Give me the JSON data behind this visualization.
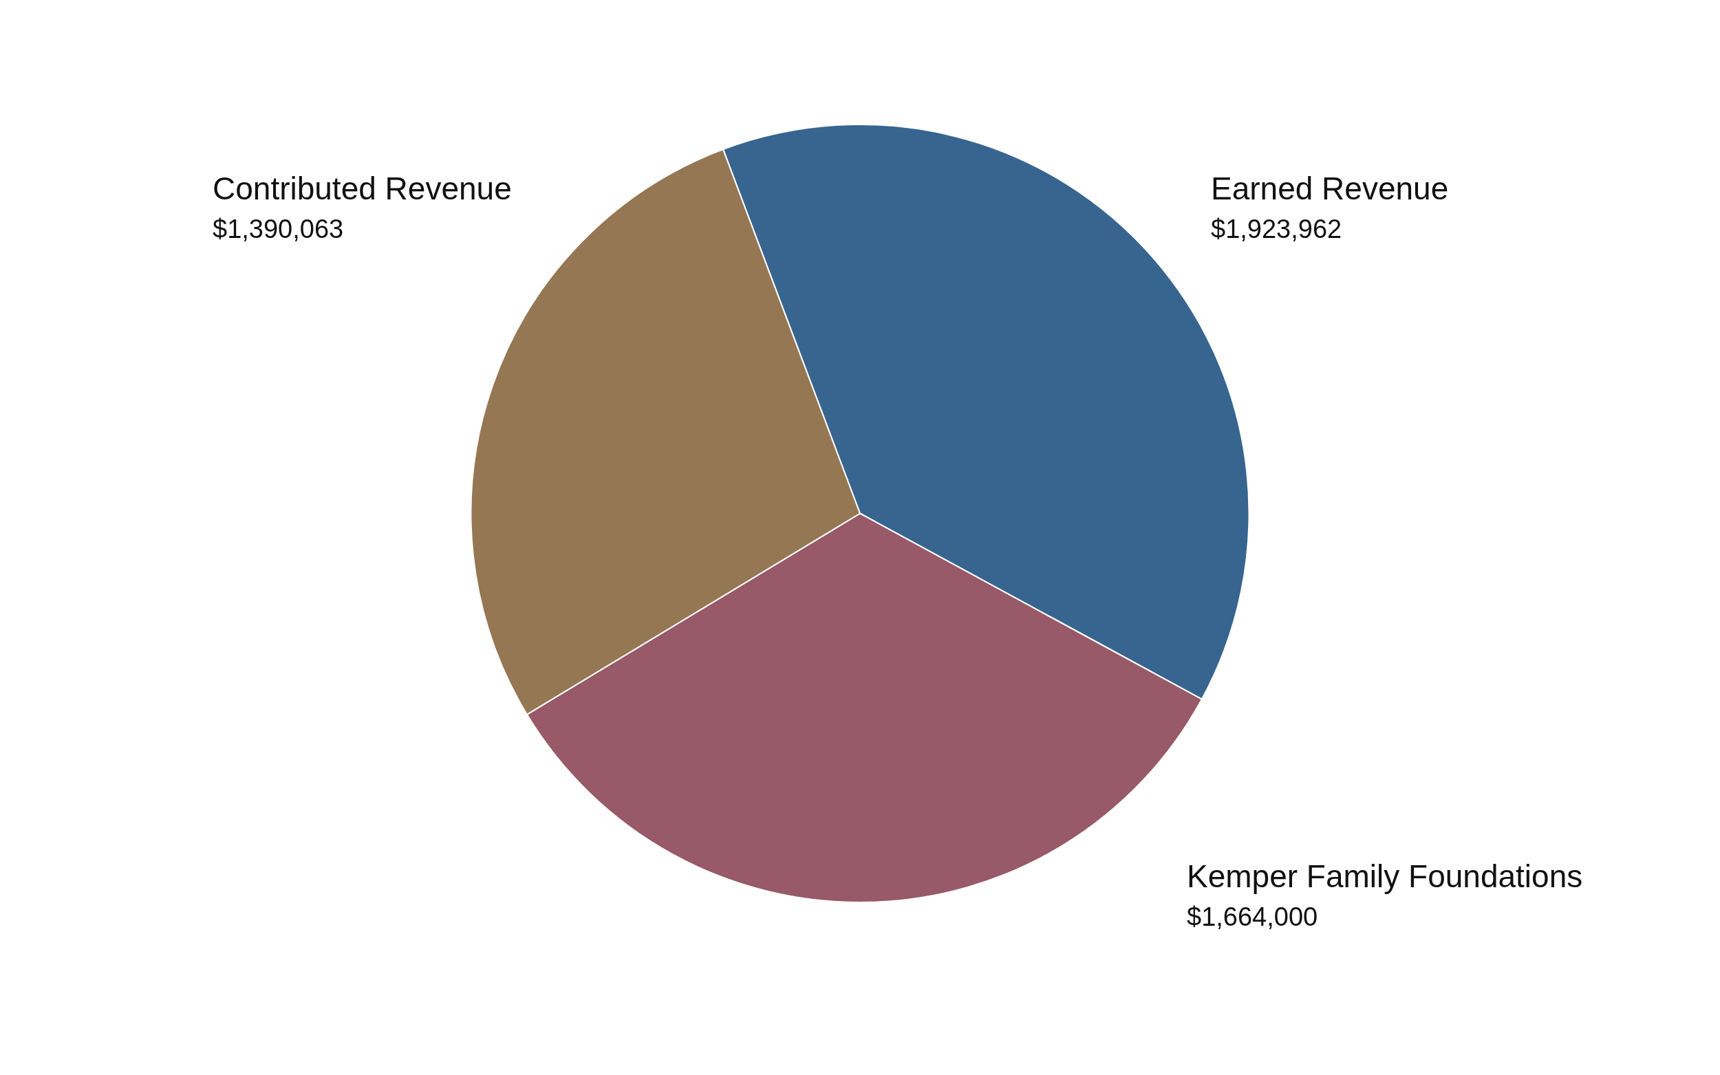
{
  "chart_data": {
    "type": "pie",
    "categories": [
      "Earned Revenue",
      "Kemper Family Foundations",
      "Contributed Revenue"
    ],
    "values": [
      1923962,
      1664000,
      1390063
    ],
    "colors": [
      "#376590",
      "#985968",
      "#957753"
    ],
    "value_labels": [
      "$1,923,962",
      "$1,664,000",
      "$1,390,063"
    ],
    "legend": false
  }
}
